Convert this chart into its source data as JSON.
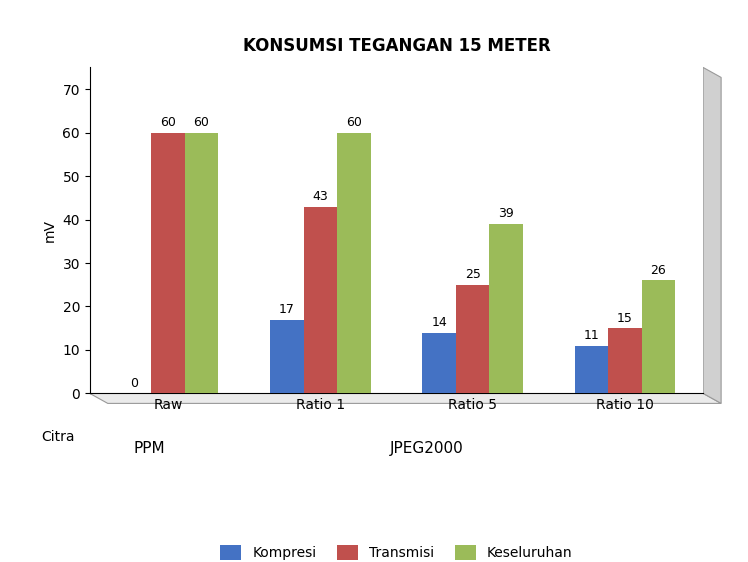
{
  "title": "KONSUMSI TEGANGAN 15 METER",
  "ylabel": "mV",
  "xlabel_main": "Citra",
  "categories": [
    "Raw",
    "Ratio 1",
    "Ratio 5",
    "Ratio 10"
  ],
  "group_labels": [
    "PPM",
    "JPEG2000"
  ],
  "series": {
    "Kompresi": [
      0,
      17,
      14,
      11
    ],
    "Transmisi": [
      60,
      43,
      25,
      15
    ],
    "Keseluruhan": [
      60,
      60,
      39,
      26
    ]
  },
  "colors": {
    "Kompresi": "#4472C4",
    "Transmisi": "#C0504D",
    "Keseluruhan": "#9BBB59"
  },
  "ylim": [
    0,
    75
  ],
  "yticks": [
    0,
    10,
    20,
    30,
    40,
    50,
    60,
    70
  ],
  "bar_width": 0.22,
  "title_fontsize": 12,
  "axis_label_fontsize": 10,
  "tick_fontsize": 10,
  "annotation_fontsize": 9,
  "group_label_fontsize": 11,
  "citra_fontsize": 10
}
